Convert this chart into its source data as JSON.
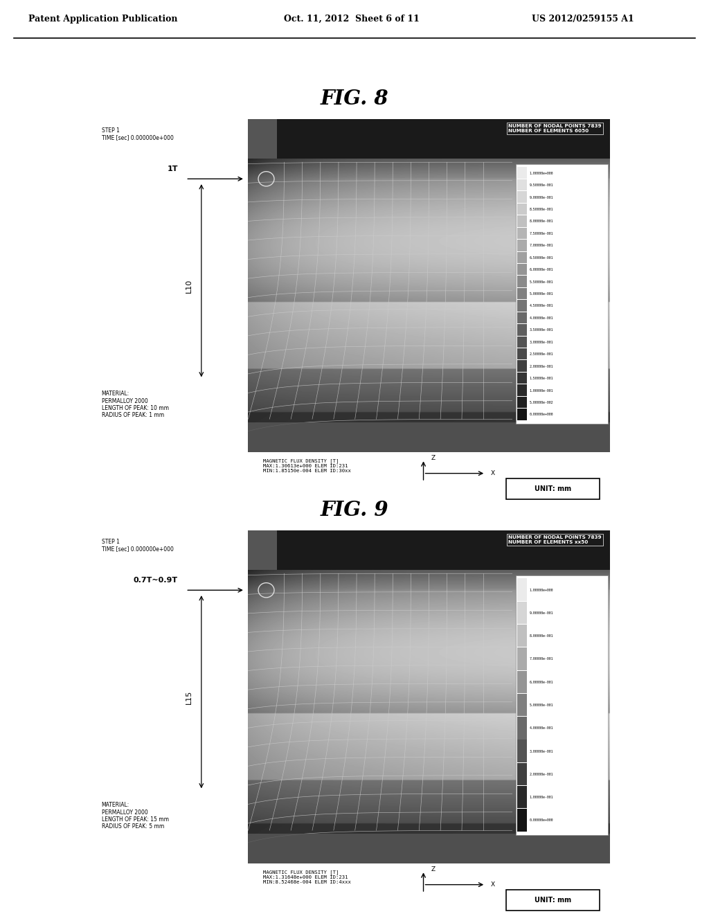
{
  "page_title_left": "Patent Application Publication",
  "page_title_center": "Oct. 11, 2012  Sheet 6 of 11",
  "page_title_right": "US 2012/0259155 A1",
  "fig8_title": "FIG. 8",
  "fig9_title": "FIG. 9",
  "fig8": {
    "step_text": "STEP 1\nTIME [sec] 0.000000e+000",
    "label_top": "1T",
    "label_mid": "L10",
    "nodal_text": "NUMBER OF NODAL POINTS 7839\nNUMBER OF ELEMENTS 6050",
    "material_text": "MATERIAL:\nPERMALLOY 2000\nLENGTH OF PEAK: 10 mm\nRADIUS OF PEAK: 1 mm",
    "flux_text": "MAGNETIC FLUX DENSITY [T]\nMAX:1.30613e+000 ELEM ID:231\nMIN:1.85150e-004 ELEM ID:30xx",
    "unit_text": "UNIT: mm",
    "colorbar_values": [
      "1.00000e+000",
      "9.50000e-001",
      "9.00000e-001",
      "8.50000e-001",
      "8.00000e-001",
      "7.50000e-001",
      "7.00000e-001",
      "6.50000e-001",
      "6.00000e-001",
      "5.50000e-001",
      "5.00000e-001",
      "4.50000e-001",
      "4.00000e-001",
      "3.50000e-001",
      "3.00000e-001",
      "2.50000e-001",
      "2.00000e-001",
      "1.50000e-001",
      "1.00000e-001",
      "5.00000e-002",
      "0.00000e+000"
    ]
  },
  "fig9": {
    "step_text": "STEP 1\nTIME [sec] 0.000000e+000",
    "label_top": "0.7T~0.9T",
    "label_mid": "L15",
    "nodal_text": "NUMBER OF NODAL POINTS 7839\nNUMBER OF ELEMENTS xx50",
    "material_text": "MATERIAL:\nPERMALLOY 2000\nLENGTH OF PEAK: 15 mm\nRADIUS OF PEAK: 5 mm",
    "flux_text": "MAGNETIC FLUX DENSITY [T]\nMAX:1.31648e+000 ELEM ID:231\nMIN:8.52468e-004 ELEM ID:4xxx",
    "unit_text": "UNIT: mm",
    "colorbar_values": [
      "1.00000e+000",
      "9.00000e-001",
      "8.00000e-001",
      "7.00000e-001",
      "6.00000e-001",
      "5.00000e-001",
      "4.00000e-001",
      "3.00000e-001",
      "2.00000e-001",
      "1.00000e-001",
      "0.00000e+000"
    ]
  },
  "bg_color": "#ffffff"
}
